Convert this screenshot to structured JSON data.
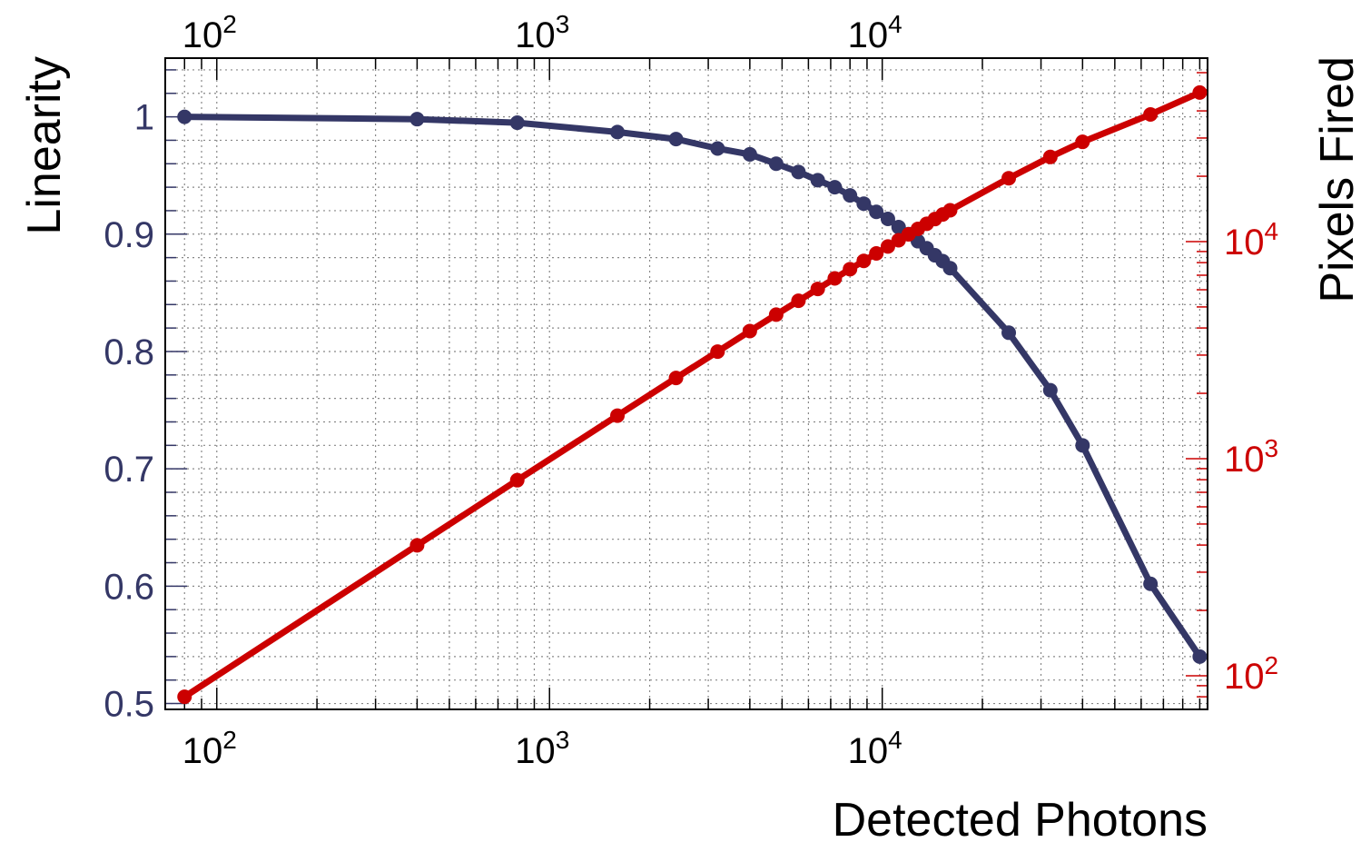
{
  "chart_data": {
    "type": "line",
    "title": "",
    "xlabel": "Detected Photons",
    "ylabel_left": "Linearity",
    "ylabel_right": "Pixels Fired",
    "x_scale": "log",
    "xlim": [
      70,
      95000
    ],
    "x_ticks": [
      {
        "value": 100,
        "base": "10",
        "exp": "2"
      },
      {
        "value": 1000,
        "base": "10",
        "exp": "3"
      },
      {
        "value": 10000,
        "base": "10",
        "exp": "4"
      }
    ],
    "ylim_left": [
      0.495,
      1.05
    ],
    "y_ticks_left": [
      {
        "value": 0.5,
        "label": "0.5"
      },
      {
        "value": 0.6,
        "label": "0.6"
      },
      {
        "value": 0.7,
        "label": "0.7"
      },
      {
        "value": 0.8,
        "label": "0.8"
      },
      {
        "value": 0.9,
        "label": "0.9"
      },
      {
        "value": 1.0,
        "label": "1"
      }
    ],
    "y_scale_right": "log",
    "ylim_right": [
      70,
      70000
    ],
    "y_ticks_right": [
      {
        "value": 100,
        "base": "10",
        "exp": "2"
      },
      {
        "value": 1000,
        "base": "10",
        "exp": "3"
      },
      {
        "value": 10000,
        "base": "10",
        "exp": "4"
      }
    ],
    "grid": true,
    "colors": {
      "linearity": "#343766",
      "pixels": "#cc0000",
      "frame": "#000000",
      "grid": "#888888"
    },
    "series": [
      {
        "axis": "left",
        "color": "#343766",
        "x": [
          80,
          400,
          800,
          1600,
          2400,
          3200,
          4000,
          4800,
          5600,
          6400,
          7200,
          8000,
          8800,
          9600,
          10400,
          11200,
          12000,
          12800,
          13600,
          14400,
          15200,
          16000,
          24000,
          32000,
          40000,
          64000,
          90000
        ],
        "y": [
          1.0,
          0.998,
          0.995,
          0.987,
          0.981,
          0.973,
          0.968,
          0.96,
          0.953,
          0.946,
          0.94,
          0.933,
          0.926,
          0.919,
          0.913,
          0.906,
          0.9,
          0.894,
          0.888,
          0.882,
          0.877,
          0.871,
          0.816,
          0.767,
          0.72,
          0.602,
          0.54
        ]
      },
      {
        "axis": "right",
        "color": "#cc0000",
        "x": [
          80,
          400,
          800,
          1600,
          2400,
          3200,
          4000,
          4800,
          5600,
          6400,
          7200,
          8000,
          8800,
          9600,
          10400,
          11200,
          12000,
          12800,
          13600,
          14400,
          15200,
          16000,
          24000,
          32000,
          40000,
          64000,
          90000
        ],
        "y": [
          80,
          399,
          796,
          1579,
          2354,
          3114,
          3872,
          4608,
          5337,
          6054,
          6768,
          7464,
          8149,
          8822,
          9495,
          10147,
          10800,
          11443,
          12077,
          12701,
          13330,
          13936,
          19584,
          24544,
          28800,
          38528,
          48600
        ]
      }
    ]
  }
}
